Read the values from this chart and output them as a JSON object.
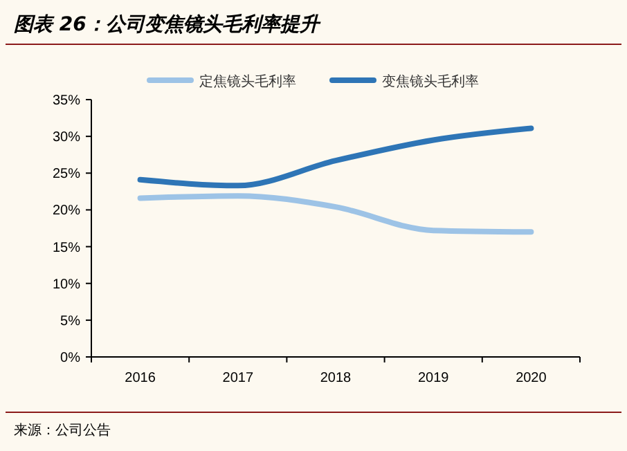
{
  "chart_data": {
    "type": "line",
    "title": "图表 26：公司变焦镜头毛利率提升",
    "categories": [
      "2016",
      "2017",
      "2018",
      "2019",
      "2020"
    ],
    "series": [
      {
        "name": "定焦镜头毛利率",
        "color": "#9dc3e6",
        "values": [
          21.6,
          21.9,
          20.4,
          17.2,
          17.0
        ]
      },
      {
        "name": "变焦镜头毛利率",
        "color": "#2e75b6",
        "values": [
          24.1,
          23.3,
          26.7,
          29.5,
          31.1
        ]
      }
    ],
    "ylim": [
      0,
      35
    ],
    "yticks": [
      {
        "value": 0,
        "label": "0%"
      },
      {
        "value": 5,
        "label": "5%"
      },
      {
        "value": 10,
        "label": "10%"
      },
      {
        "value": 15,
        "label": "15%"
      },
      {
        "value": 20,
        "label": "20%"
      },
      {
        "value": 25,
        "label": "25%"
      },
      {
        "value": 30,
        "label": "30%"
      },
      {
        "value": 35,
        "label": "35%"
      }
    ],
    "legend": "top",
    "grid": false,
    "line_style": "solid",
    "annotations": [
      "来源：公司公告"
    ]
  }
}
